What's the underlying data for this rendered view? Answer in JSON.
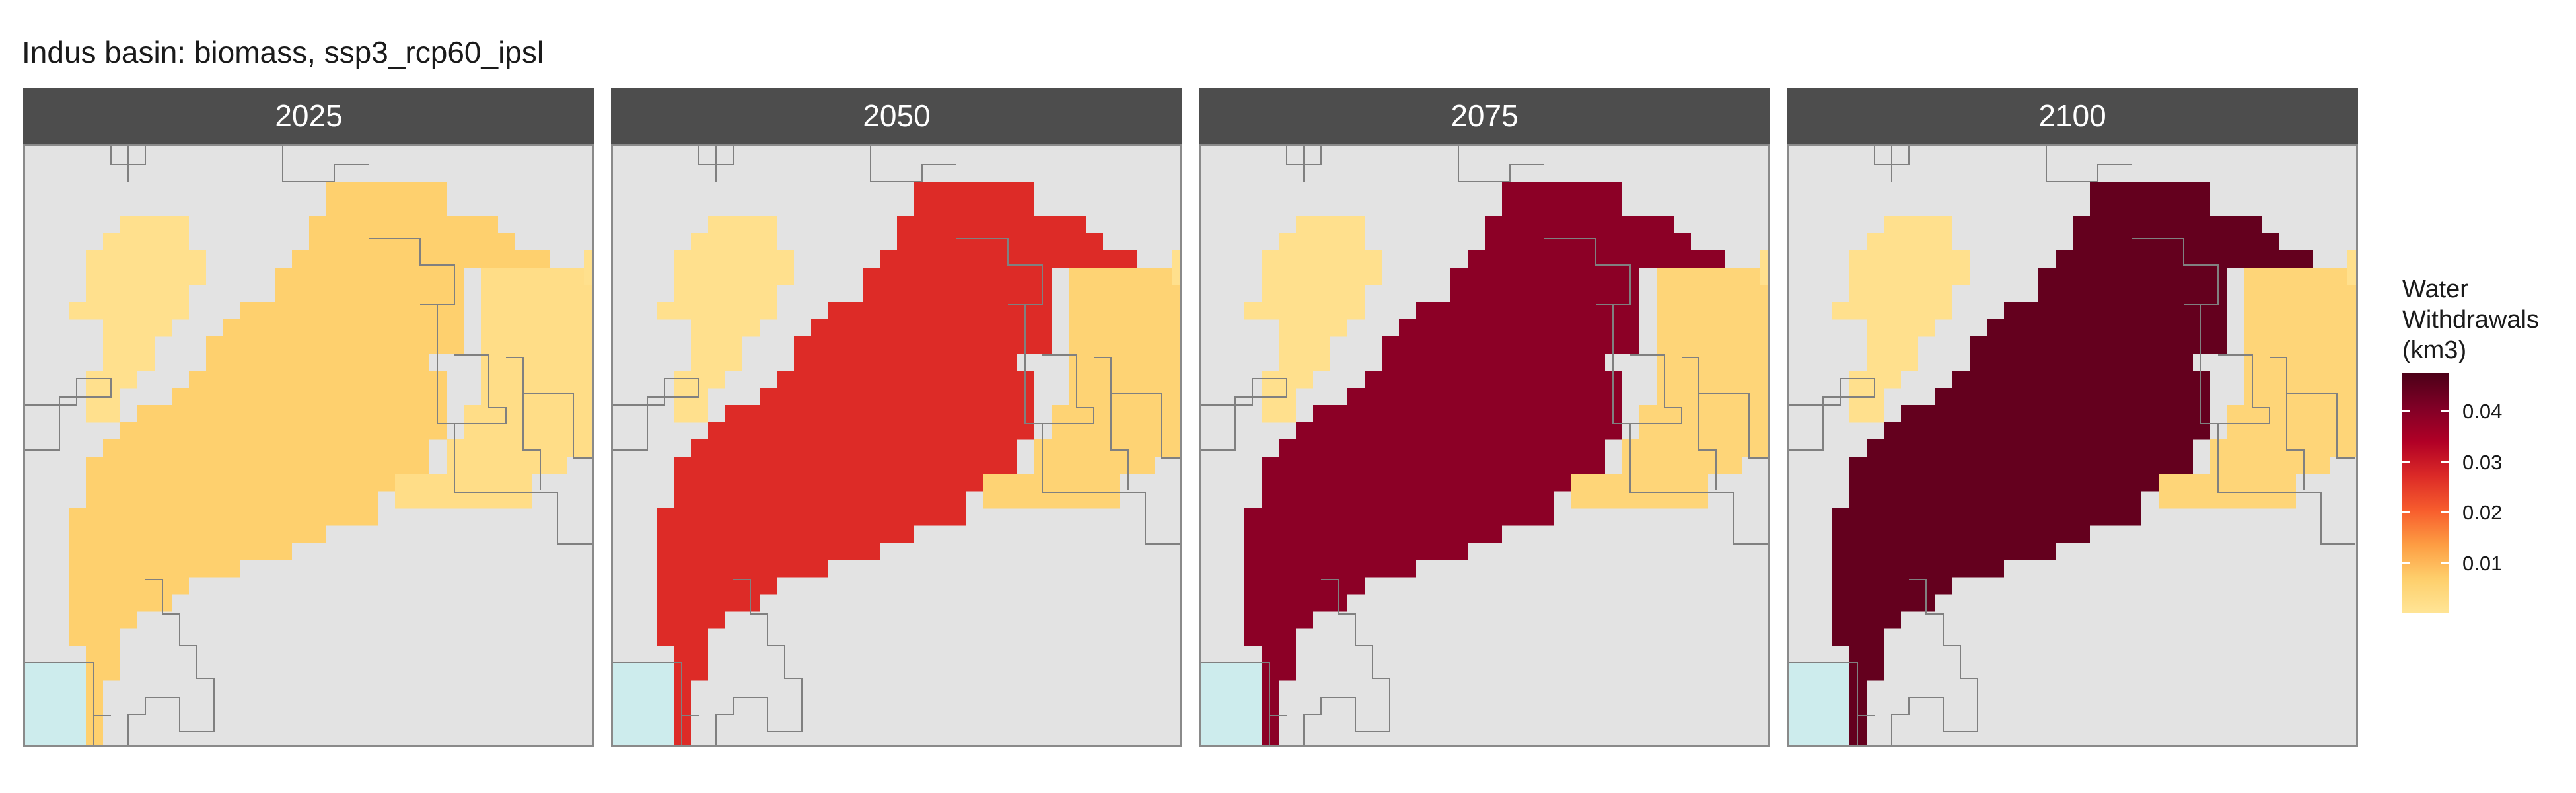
{
  "title": "Indus basin: biomass, ssp3_rcp60_ipsl",
  "panels": [
    {
      "label": "2025",
      "levels": {
        "core": 0.0065,
        "northeast": 0.0025,
        "outer": 0.0015
      }
    },
    {
      "label": "2050",
      "levels": {
        "core": 0.027,
        "northeast": 0.0055,
        "outer": 0.0015
      }
    },
    {
      "label": "2075",
      "levels": {
        "core": 0.039,
        "northeast": 0.0048,
        "outer": 0.0015
      }
    },
    {
      "label": "2100",
      "levels": {
        "core": 0.0445,
        "northeast": 0.0048,
        "outer": 0.0015
      }
    }
  ],
  "legend": {
    "title_lines": [
      "Water",
      "Withdrawals",
      "(km3)"
    ],
    "ticks": [
      "0.01",
      "0.02",
      "0.03",
      "0.04"
    ],
    "tick_values": [
      0.01,
      0.02,
      0.03,
      0.04
    ],
    "range": [
      0,
      0.0475
    ],
    "colors": [
      "#ffe596",
      "#fecf6c",
      "#fd9d43",
      "#f75d2d",
      "#dc2a27",
      "#b10026",
      "#800026",
      "#4d0018"
    ]
  },
  "map_colors": {
    "background": "#e3e3e3",
    "sea": "#cdeced",
    "border": "#808080"
  }
}
